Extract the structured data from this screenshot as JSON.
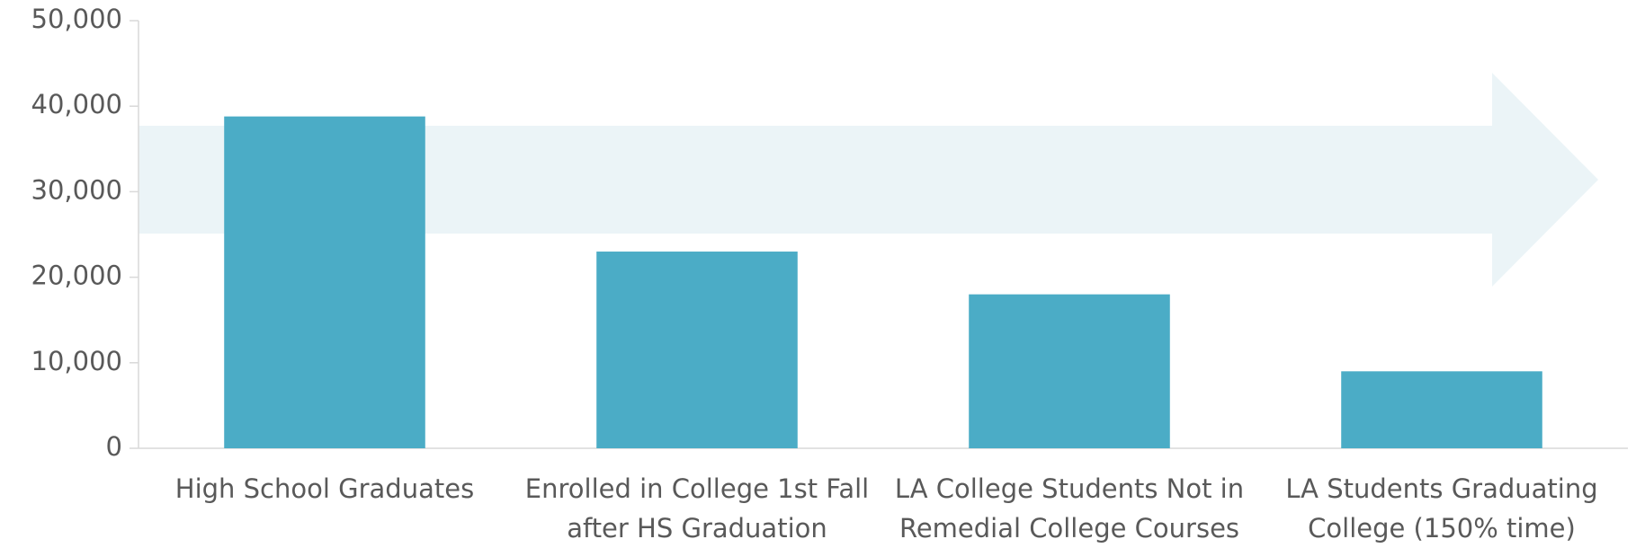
{
  "chart_data": {
    "type": "bar",
    "categories": [
      "High School Graduates",
      "Enrolled in College 1st Fall after HS Graduation",
      "LA College Students Not in Remedial College Courses",
      "LA Students Graduating College (150% time)"
    ],
    "values": [
      38800,
      23000,
      18000,
      9000
    ],
    "color": "#4bacc6",
    "ylim": [
      0,
      50000
    ],
    "yticks": [
      0,
      {
        "value": 10000,
        "label": "10,000"
      },
      {
        "value": 20000,
        "label": "20,000"
      },
      {
        "value": 30000,
        "label": "30,000"
      },
      {
        "value": 40000,
        "label": "40,000"
      },
      {
        "value": 50000,
        "label": "50,000"
      }
    ],
    "grid": false
  }
}
